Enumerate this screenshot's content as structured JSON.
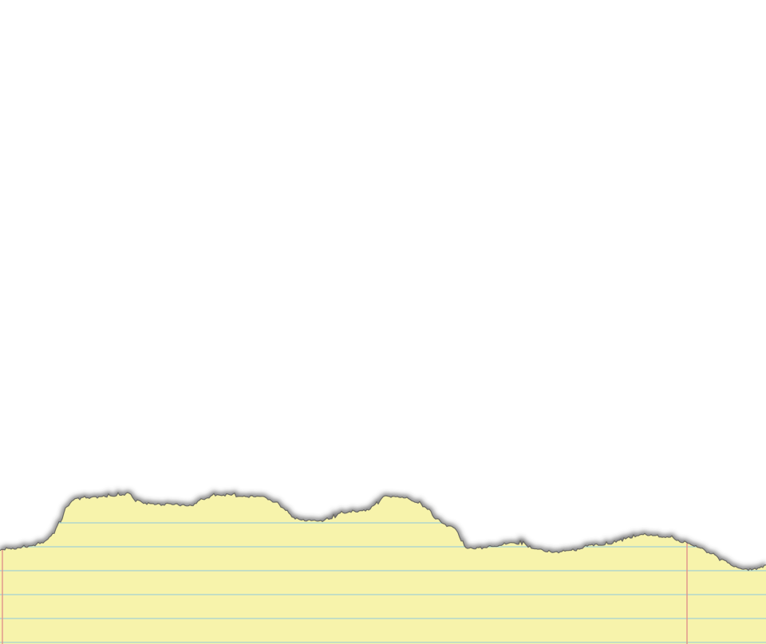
{
  "scene": {
    "background_color": "#ffffff",
    "object": "torn-legal-pad-sheet",
    "paper_color": "#f7f3ab",
    "rule_line_color": "#8fc9dd",
    "margin_line_color": "#e0928a",
    "torn_edge_shadow_color": "#3a3a3a"
  }
}
